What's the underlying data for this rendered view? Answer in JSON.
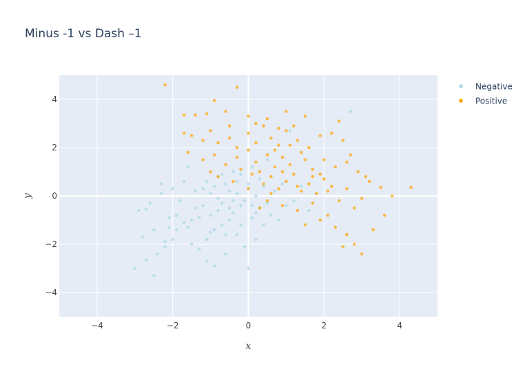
{
  "chart_data": {
    "type": "scatter",
    "title": "Minus -1 vs Dash –1",
    "xlabel": "x",
    "ylabel": "y",
    "xlim": [
      -5,
      5
    ],
    "ylim": [
      -5,
      5
    ],
    "x_ticks": [
      -4,
      -2,
      0,
      2,
      4
    ],
    "y_ticks": [
      -4,
      -2,
      0,
      2,
      4
    ],
    "x_tick_labels": [
      "−4",
      "−2",
      "0",
      "2",
      "4"
    ],
    "y_tick_labels": [
      "−4",
      "−2",
      "0",
      "2",
      "4"
    ],
    "grid": true,
    "legend_position": "top-right",
    "background_color": "#e5ecf6",
    "series": [
      {
        "name": "Negative",
        "color": "#add8e6",
        "points": [
          [
            -3.0,
            -3.0
          ],
          [
            -2.5,
            -3.3
          ],
          [
            -2.7,
            -2.65
          ],
          [
            -2.4,
            -2.4
          ],
          [
            -2.2,
            -2.1
          ],
          [
            -2.2,
            -1.9
          ],
          [
            -2.8,
            -1.7
          ],
          [
            -2.5,
            -1.4
          ],
          [
            -2.9,
            -0.6
          ],
          [
            -2.7,
            -0.55
          ],
          [
            -2.6,
            -0.3
          ],
          [
            -2.3,
            0.1
          ],
          [
            -2.3,
            0.5
          ],
          [
            -2.1,
            -0.9
          ],
          [
            -2.1,
            -1.3
          ],
          [
            -2.0,
            -1.8
          ],
          [
            -1.9,
            -1.4
          ],
          [
            -1.8,
            -0.2
          ],
          [
            -1.7,
            0.6
          ],
          [
            -1.6,
            1.2
          ],
          [
            -1.5,
            -2.0
          ],
          [
            -1.5,
            -1.0
          ],
          [
            -1.4,
            -0.5
          ],
          [
            -1.3,
            -2.2
          ],
          [
            -1.2,
            -0.4
          ],
          [
            -1.2,
            0.3
          ],
          [
            -1.1,
            -1.8
          ],
          [
            -1.1,
            -2.7
          ],
          [
            -1.0,
            -0.8
          ],
          [
            -1.0,
            0.1
          ],
          [
            -0.9,
            -1.4
          ],
          [
            -0.9,
            -2.9
          ],
          [
            -0.8,
            -0.6
          ],
          [
            -0.8,
            0.8
          ],
          [
            -0.7,
            -1.2
          ],
          [
            -0.7,
            -0.3
          ],
          [
            -0.6,
            0.5
          ],
          [
            -0.6,
            -2.4
          ],
          [
            -0.5,
            -1.0
          ],
          [
            -0.5,
            0.2
          ],
          [
            -0.4,
            -0.7
          ],
          [
            -0.4,
            1.0
          ],
          [
            -0.3,
            -1.6
          ],
          [
            -0.3,
            0.6
          ],
          [
            -0.2,
            -0.4
          ],
          [
            -0.2,
            0.9
          ],
          [
            -0.1,
            -2.1
          ],
          [
            -0.1,
            -0.2
          ],
          [
            0.0,
            -3.0
          ],
          [
            0.0,
            0.3
          ],
          [
            0.1,
            -0.9
          ],
          [
            0.1,
            1.2
          ],
          [
            0.2,
            -1.8
          ],
          [
            0.2,
            0.0
          ],
          [
            0.3,
            -0.5
          ],
          [
            0.3,
            0.7
          ],
          [
            0.4,
            -1.2
          ],
          [
            0.4,
            0.4
          ],
          [
            0.5,
            -0.3
          ],
          [
            0.5,
            1.5
          ],
          [
            0.6,
            -0.8
          ],
          [
            0.7,
            0.2
          ],
          [
            0.8,
            -1.0
          ],
          [
            0.9,
            0.5
          ],
          [
            1.0,
            -0.4
          ],
          [
            1.1,
            2.7
          ],
          [
            1.2,
            -0.2
          ],
          [
            1.4,
            0.4
          ],
          [
            1.6,
            -0.6
          ],
          [
            2.7,
            3.5
          ],
          [
            1.8,
            0.1
          ],
          [
            -1.9,
            -0.8
          ],
          [
            -1.4,
            0.2
          ],
          [
            -0.9,
            0.4
          ],
          [
            -0.6,
            -1.6
          ],
          [
            -0.2,
            -1.2
          ],
          [
            0.2,
            -0.7
          ],
          [
            -1.6,
            -1.3
          ],
          [
            -1.3,
            -0.9
          ],
          [
            -1.0,
            -1.5
          ],
          [
            -0.8,
            -0.1
          ],
          [
            -0.5,
            -0.5
          ],
          [
            -0.3,
            0.1
          ],
          [
            0.1,
            -0.4
          ],
          [
            -2.0,
            0.3
          ],
          [
            -1.7,
            -1.1
          ],
          [
            -1.1,
            0.6
          ],
          [
            -0.7,
            0.9
          ],
          [
            -0.4,
            -0.2
          ],
          [
            0.0,
            0.5
          ]
        ]
      },
      {
        "name": "Positive",
        "color": "#ffa500",
        "points": [
          [
            -2.2,
            4.6
          ],
          [
            -0.3,
            4.5
          ],
          [
            -0.9,
            3.95
          ],
          [
            -1.7,
            3.35
          ],
          [
            -1.4,
            3.35
          ],
          [
            -1.1,
            3.4
          ],
          [
            -0.6,
            3.5
          ],
          [
            0.0,
            3.3
          ],
          [
            0.5,
            3.2
          ],
          [
            1.0,
            3.5
          ],
          [
            1.5,
            3.3
          ],
          [
            2.4,
            3.1
          ],
          [
            -1.7,
            2.6
          ],
          [
            -1.5,
            2.5
          ],
          [
            -1.2,
            2.3
          ],
          [
            -1.0,
            2.7
          ],
          [
            -0.8,
            2.2
          ],
          [
            -0.5,
            2.4
          ],
          [
            -0.3,
            2.0
          ],
          [
            0.0,
            2.6
          ],
          [
            0.2,
            2.2
          ],
          [
            0.4,
            2.9
          ],
          [
            0.6,
            2.4
          ],
          [
            0.8,
            2.1
          ],
          [
            1.0,
            2.7
          ],
          [
            1.3,
            2.3
          ],
          [
            1.6,
            2.0
          ],
          [
            1.9,
            2.5
          ],
          [
            2.2,
            2.6
          ],
          [
            2.5,
            2.3
          ],
          [
            -1.6,
            1.8
          ],
          [
            -1.2,
            1.5
          ],
          [
            -0.9,
            1.7
          ],
          [
            -0.6,
            1.3
          ],
          [
            -0.3,
            1.6
          ],
          [
            0.0,
            1.9
          ],
          [
            0.2,
            1.4
          ],
          [
            0.5,
            1.7
          ],
          [
            0.7,
            1.2
          ],
          [
            0.9,
            1.6
          ],
          [
            1.1,
            1.3
          ],
          [
            1.4,
            1.8
          ],
          [
            1.7,
            1.1
          ],
          [
            2.0,
            1.5
          ],
          [
            2.3,
            1.2
          ],
          [
            2.6,
            1.4
          ],
          [
            2.9,
            1.0
          ],
          [
            3.2,
            0.6
          ],
          [
            3.5,
            0.35
          ],
          [
            3.8,
            0.0
          ],
          [
            4.3,
            0.35
          ],
          [
            -0.8,
            0.8
          ],
          [
            -0.4,
            0.6
          ],
          [
            0.1,
            0.9
          ],
          [
            0.4,
            0.5
          ],
          [
            0.6,
            0.8
          ],
          [
            0.8,
            0.3
          ],
          [
            1.0,
            0.6
          ],
          [
            1.2,
            0.9
          ],
          [
            1.4,
            0.2
          ],
          [
            1.6,
            0.5
          ],
          [
            1.8,
            0.1
          ],
          [
            2.0,
            0.7
          ],
          [
            2.2,
            0.4
          ],
          [
            2.4,
            -0.2
          ],
          [
            2.6,
            0.3
          ],
          [
            2.8,
            -0.5
          ],
          [
            3.0,
            -0.1
          ],
          [
            0.5,
            -0.2
          ],
          [
            0.9,
            -0.4
          ],
          [
            1.3,
            -0.6
          ],
          [
            1.7,
            -0.3
          ],
          [
            2.1,
            -0.8
          ],
          [
            2.3,
            -1.3
          ],
          [
            2.5,
            -2.1
          ],
          [
            2.8,
            -2.0
          ],
          [
            3.0,
            -2.4
          ],
          [
            3.3,
            -1.4
          ],
          [
            1.5,
            -1.2
          ],
          [
            1.9,
            -1.0
          ],
          [
            2.6,
            -1.6
          ],
          [
            3.6,
            -0.8
          ],
          [
            0.3,
            1.0
          ],
          [
            0.7,
            1.9
          ],
          [
            1.1,
            2.1
          ],
          [
            1.5,
            1.5
          ],
          [
            1.9,
            0.9
          ],
          [
            0.0,
            0.3
          ],
          [
            0.3,
            -0.5
          ],
          [
            0.6,
            0.1
          ],
          [
            -0.2,
            1.1
          ],
          [
            0.9,
            1.0
          ],
          [
            1.3,
            0.4
          ],
          [
            1.7,
            0.8
          ],
          [
            2.1,
            0.2
          ],
          [
            -0.5,
            2.9
          ],
          [
            0.2,
            3.0
          ],
          [
            0.8,
            2.8
          ],
          [
            1.2,
            2.9
          ],
          [
            2.7,
            1.7
          ],
          [
            3.1,
            0.8
          ],
          [
            -1.0,
            1.0
          ]
        ]
      }
    ]
  }
}
